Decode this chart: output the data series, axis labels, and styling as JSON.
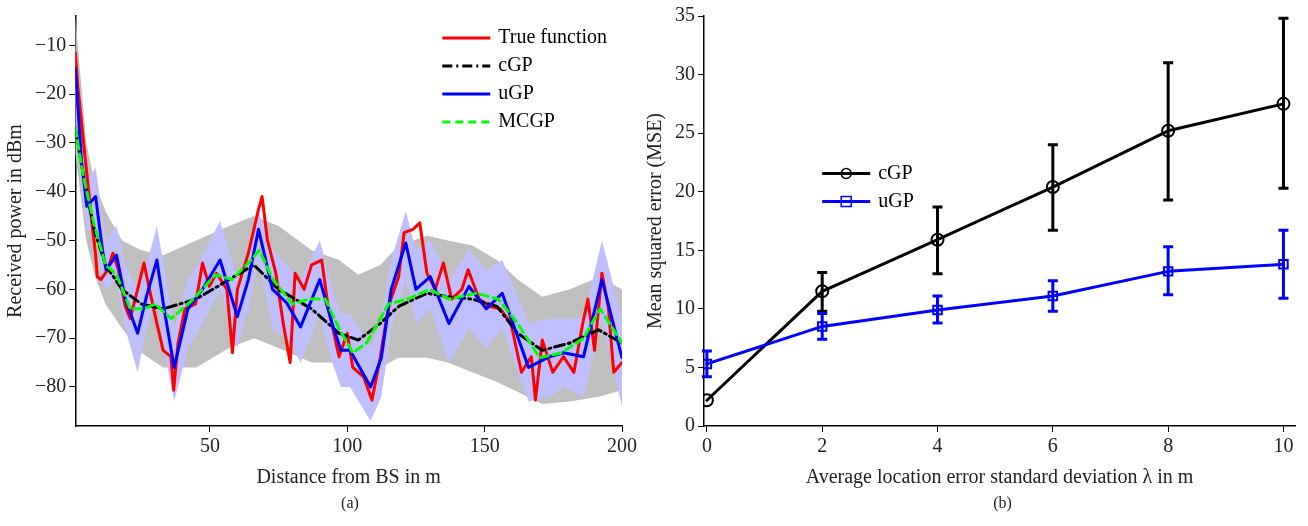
{
  "chart_data": [
    {
      "type": "line",
      "xlabel": "Distance from BS in m",
      "ylabel": "Received power in dBm",
      "annotations": [
        "(a)"
      ],
      "xlim": [
        1,
        200
      ],
      "ylim": [
        -88,
        -4
      ],
      "xticks": [
        50,
        100,
        150,
        200
      ],
      "yticks": [
        -10,
        -20,
        -30,
        -40,
        -50,
        -60,
        -70,
        -80
      ],
      "grid": false,
      "legend": "top right",
      "marker": "none",
      "series": [
        {
          "name": "True function",
          "color": "#ff0000",
          "line_style": "solid",
          "x": [
            1,
            2,
            3.3,
            4.5,
            5.8,
            7,
            8.4,
            9,
            10.3,
            12.8,
            14.7,
            16.7,
            19.2,
            21,
            23.7,
            26,
            28,
            30.7,
            33,
            35.8,
            36.8,
            38.4,
            40.9,
            44.8,
            47.3,
            49.8,
            52.4,
            56.2,
            58.2,
            60,
            64,
            67.7,
            69,
            70.9,
            74,
            76.7,
            79.2,
            81,
            84.3,
            87,
            90.7,
            93,
            97,
            100,
            102,
            106,
            109,
            112,
            115,
            118.7,
            120.7,
            123.9,
            126.4,
            129,
            132,
            135,
            138,
            141.7,
            144,
            148,
            152,
            155.7,
            159.6,
            163.4,
            167,
            168.5,
            171,
            174.8,
            178.7,
            182.5,
            185.7,
            187.6,
            190,
            192.7,
            195,
            197,
            200
          ],
          "values": [
            -11.5,
            -19,
            -25.8,
            -32.6,
            -39.5,
            -46,
            -53,
            -57.4,
            -58,
            -56,
            -52.6,
            -56,
            -63.5,
            -66,
            -60,
            -54.6,
            -60,
            -67,
            -72.5,
            -73.8,
            -80.7,
            -71,
            -64,
            -63,
            -54.6,
            -59.4,
            -56.7,
            -60,
            -73,
            -60,
            -52.6,
            -43.6,
            -41,
            -49.8,
            -56.7,
            -67,
            -75,
            -56.7,
            -60,
            -55,
            -54,
            -63.5,
            -73.8,
            -69,
            -76,
            -78,
            -82.7,
            -74,
            -63.5,
            -57.4,
            -48.4,
            -47.7,
            -46.4,
            -56.7,
            -60,
            -54.6,
            -62,
            -60,
            -56,
            -62,
            -63.5,
            -64,
            -67,
            -77,
            -73.8,
            -82.7,
            -70.4,
            -77,
            -73.8,
            -77,
            -67,
            -62,
            -72.5,
            -56.7,
            -63.5,
            -77,
            -75
          ]
        },
        {
          "name": "cGP",
          "color": "#000000",
          "line_style": "dashdot",
          "x": [
            1,
            5,
            8,
            12,
            18,
            25,
            33,
            45,
            57,
            66,
            75,
            87,
            97,
            104,
            112,
            118.7,
            129,
            136.6,
            145.5,
            154.5,
            162,
            171,
            181,
            191.5,
            200
          ],
          "values": [
            -27,
            -40,
            -48,
            -55,
            -60,
            -63,
            -64,
            -62,
            -58,
            -55,
            -60,
            -64,
            -69,
            -70.4,
            -67,
            -63.5,
            -60.8,
            -61.5,
            -62,
            -63.5,
            -69,
            -72.5,
            -71,
            -68.3,
            -71
          ],
          "upper": [
            -4,
            -30,
            -38,
            -44,
            -50,
            -52,
            -53,
            -50,
            -47,
            -45,
            -47,
            -52,
            -54,
            -57,
            -55,
            -51,
            -49,
            -50,
            -51,
            -54,
            -58,
            -61.5,
            -60,
            -57.5,
            -60
          ],
          "lower": [
            -32,
            -50,
            -57,
            -63,
            -68,
            -73,
            -76,
            -76,
            -72,
            -70,
            -72,
            -75,
            -75,
            -77,
            -76,
            -74,
            -74,
            -75,
            -77,
            -79,
            -81,
            -83.5,
            -83,
            -82,
            -80.7
          ]
        },
        {
          "name": "uGP",
          "color": "#0000ff",
          "line_style": "solid",
          "x": [
            1,
            3.3,
            5.2,
            8.4,
            10.9,
            12.2,
            16,
            19.2,
            23.7,
            26.9,
            30.7,
            33.2,
            37,
            42,
            47.3,
            53.7,
            60,
            64,
            67.7,
            72.8,
            78,
            83,
            90,
            94.5,
            97.7,
            101,
            108.5,
            112.4,
            116,
            121.3,
            125,
            130.2,
            137,
            144.3,
            150.6,
            156.4,
            166,
            173.6,
            178.7,
            186,
            192.7,
            200
          ],
          "values": [
            -14.8,
            -34,
            -43,
            -41,
            -52,
            -56,
            -53,
            -62,
            -69,
            -61.5,
            -54,
            -63.5,
            -76,
            -64,
            -60,
            -54,
            -65.6,
            -58,
            -47.7,
            -60,
            -62.8,
            -67.7,
            -58,
            -67,
            -72.5,
            -72.5,
            -80,
            -74,
            -60,
            -50.5,
            -60,
            -57.4,
            -67,
            -59.4,
            -64,
            -60.8,
            -76,
            -73.8,
            -73,
            -73.8,
            -58,
            -74
          ],
          "upper": [
            -10,
            -28,
            -38,
            -35,
            -45,
            -50,
            -47,
            -55,
            -60,
            -55,
            -47,
            -55,
            -68,
            -58,
            -53,
            -46,
            -58,
            -52,
            -44,
            -52,
            -55,
            -58,
            -50,
            -60,
            -65,
            -65,
            -72,
            -66,
            -54,
            -44,
            -52,
            -50,
            -58,
            -52,
            -56,
            -54,
            -67,
            -66,
            -66,
            -66,
            -50,
            -66
          ],
          "lower": [
            -20,
            -40,
            -48,
            -47,
            -58,
            -60,
            -58,
            -68,
            -77,
            -68,
            -62,
            -72,
            -83,
            -72,
            -67,
            -60,
            -72,
            -64,
            -54,
            -68,
            -70,
            -75,
            -65,
            -75,
            -80,
            -80,
            -87,
            -82,
            -68,
            -58,
            -67,
            -64,
            -75,
            -68,
            -72,
            -68,
            -83,
            -82,
            -80,
            -82,
            -66,
            -84
          ]
        },
        {
          "name": "MCGP",
          "color": "#00ff00",
          "line_style": "dashed",
          "x": [
            1,
            4,
            8,
            12,
            16,
            21,
            26,
            30,
            36,
            44,
            52,
            58,
            64,
            68,
            73,
            80,
            86,
            92,
            97,
            102,
            107,
            115,
            122,
            130,
            137,
            147,
            155,
            162,
            170,
            178,
            186,
            192,
            200
          ],
          "values": [
            -27,
            -37,
            -47,
            -55,
            -57,
            -64,
            -64,
            -63,
            -66,
            -62,
            -57,
            -58,
            -54.6,
            -52,
            -58,
            -63,
            -62,
            -62,
            -68,
            -73,
            -71,
            -63,
            -62,
            -60,
            -62,
            -60.8,
            -62,
            -67,
            -74,
            -73,
            -70,
            -64,
            -71
          ]
        }
      ]
    },
    {
      "type": "line",
      "xlabel": "Average location error standard deviation λ in m",
      "ylabel": "Mean squared error (MSE)",
      "annotations": [
        "(b)"
      ],
      "xlim": [
        -0.05,
        10.2
      ],
      "ylim": [
        0,
        35
      ],
      "xticks": [
        0,
        2,
        4,
        6,
        8,
        10
      ],
      "yticks": [
        0,
        5,
        10,
        15,
        20,
        25,
        30,
        35
      ],
      "grid": false,
      "legend": "left",
      "x": [
        0,
        2,
        4,
        6,
        8,
        10
      ],
      "series": [
        {
          "name": "cGP",
          "color": "#000000",
          "marker": "circle",
          "line_style": "solid",
          "values": [
            2.2,
            11.5,
            15.9,
            20.4,
            25.2,
            27.5
          ],
          "errors": [
            null,
            [
              9.8,
              13.1
            ],
            [
              13,
              18.7
            ],
            [
              16.7,
              24
            ],
            [
              19.3,
              31
            ],
            [
              20.3,
              34.8
            ]
          ]
        },
        {
          "name": "uGP",
          "color": "#0000ff",
          "marker": "square",
          "line_style": "solid",
          "values": [
            5.3,
            8.5,
            9.9,
            11.1,
            13.2,
            13.8
          ],
          "errors": [
            [
              4.2,
              6.4
            ],
            [
              7.4,
              9.6
            ],
            [
              8.8,
              11.1
            ],
            [
              9.8,
              12.4
            ],
            [
              11.2,
              15.3
            ],
            [
              10.9,
              16.7
            ]
          ]
        }
      ]
    }
  ]
}
